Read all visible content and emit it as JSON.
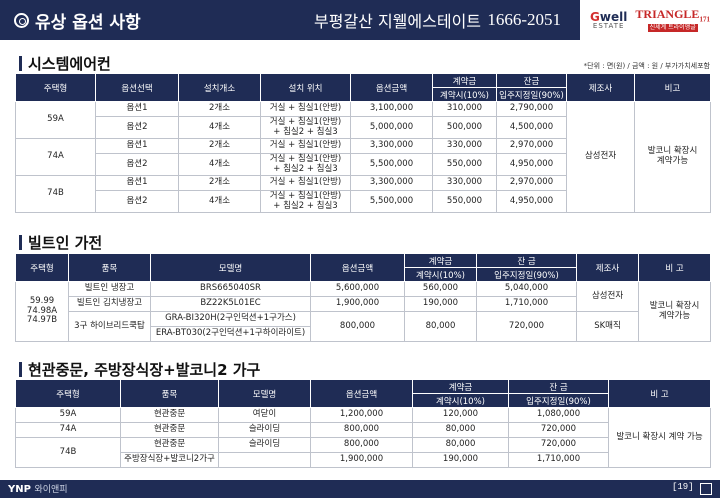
{
  "header": {
    "title": "유상 옵션 사항",
    "project": "부평갈산 지웰에스테이트",
    "phone": "1666-2051",
    "logo1": {
      "main_a": "G",
      "main_b": "well",
      "sub": "ESTATE"
    },
    "logo2": {
      "main": "TRIANGLE",
      "num": "171",
      "sub": "신세계 트라이앵글"
    }
  },
  "sections": {
    "aircon": "시스템에어컨",
    "builtin": "빌트인 가전",
    "furniture": "현관중문, 주방장식장+발코니2 가구"
  },
  "unit_note": "*단위 : 면(원) / 금액 : 원 / 부가가치세포함",
  "aircon": {
    "headers": {
      "type": "주택형",
      "option": "옵션선택",
      "count": "설치개소",
      "location": "설치 위치",
      "amount": "옵션금액",
      "contract": "계약금",
      "contract_sub": "계약시(10%)",
      "balance": "잔금",
      "balance_sub": "입주지정일(90%)",
      "maker": "제조사",
      "note": "비고"
    },
    "rows": [
      {
        "type": "59A",
        "option": "옵션1",
        "count": "2개소",
        "location": "거실 + 침실1(안방)",
        "amount": "3,100,000",
        "contract": "310,000",
        "balance": "2,790,000"
      },
      {
        "type": "",
        "option": "옵션2",
        "count": "4개소",
        "location": "거실 + 침실1(안방)\n+ 침실2 + 침실3",
        "amount": "5,000,000",
        "contract": "500,000",
        "balance": "4,500,000"
      },
      {
        "type": "74A",
        "option": "옵션1",
        "count": "2개소",
        "location": "거실 + 침실1(안방)",
        "amount": "3,300,000",
        "contract": "330,000",
        "balance": "2,970,000"
      },
      {
        "type": "",
        "option": "옵션2",
        "count": "4개소",
        "location": "거실 + 침실1(안방)\n+ 침실2 + 침실3",
        "amount": "5,500,000",
        "contract": "550,000",
        "balance": "4,950,000"
      },
      {
        "type": "74B",
        "option": "옵션1",
        "count": "2개소",
        "location": "거실 + 침실1(안방)",
        "amount": "3,300,000",
        "contract": "330,000",
        "balance": "2,970,000"
      },
      {
        "type": "",
        "option": "옵션2",
        "count": "4개소",
        "location": "거실 + 침실1(안방)\n+ 침실2 + 침실3",
        "amount": "5,500,000",
        "contract": "550,000",
        "balance": "4,950,000"
      }
    ],
    "maker": "삼성전자",
    "note": "발코니 확장시\n계약가능"
  },
  "builtin": {
    "headers": {
      "type": "주택형",
      "item": "품목",
      "model": "모델명",
      "amount": "옵션금액",
      "contract": "계약금",
      "contract_sub": "계약시(10%)",
      "balance": "잔 금",
      "balance_sub": "입주지정일(90%)",
      "maker": "제조사",
      "note": "비 고"
    },
    "types": "59.99\n74.98A\n74.97B",
    "rows": [
      {
        "item": "빌트인 냉장고",
        "model": "BRS665040SR",
        "amount": "5,600,000",
        "contract": "560,000",
        "balance": "5,040,000"
      },
      {
        "item": "빌트인 김치냉장고",
        "model": "BZ22K5L01EC",
        "amount": "1,900,000",
        "contract": "190,000",
        "balance": "1,710,000"
      },
      {
        "item": "3구 하이브리드쿡탑",
        "model": "GRA-BI320H(2구인덕션+1구가스)",
        "amount": "800,000",
        "contract": "80,000",
        "balance": "720,000"
      },
      {
        "item": "",
        "model": "ERA-BT030(2구인덕션+1구하이라이트)",
        "amount": "",
        "contract": "",
        "balance": ""
      }
    ],
    "maker1": "삼성전자",
    "maker2": "SK매직",
    "note": "발코니 확장시\n계약가능"
  },
  "furniture": {
    "headers": {
      "type": "주택형",
      "item": "품목",
      "model": "모델명",
      "amount": "옵션금액",
      "contract": "계약금",
      "contract_sub": "계약시(10%)",
      "balance": "잔 금",
      "balance_sub": "입주지정일(90%)",
      "note": "비 고"
    },
    "rows": [
      {
        "type": "59A",
        "item": "현관중문",
        "model": "여닫이",
        "amount": "1,200,000",
        "contract": "120,000",
        "balance": "1,080,000"
      },
      {
        "type": "74A",
        "item": "현관중문",
        "model": "슬라이딩",
        "amount": "800,000",
        "contract": "80,000",
        "balance": "720,000"
      },
      {
        "type": "74B",
        "item": "현관중문",
        "model": "슬라이딩",
        "amount": "800,000",
        "contract": "80,000",
        "balance": "720,000"
      },
      {
        "type": "",
        "item": "주방장식장+발코니2가구",
        "model": "",
        "amount": "1,900,000",
        "contract": "190,000",
        "balance": "1,710,000"
      }
    ],
    "note": "발코니 확장시 계약 가능"
  },
  "footer": {
    "brand": "YNP",
    "brand_sub": "와이앤피",
    "page": "[19]"
  }
}
